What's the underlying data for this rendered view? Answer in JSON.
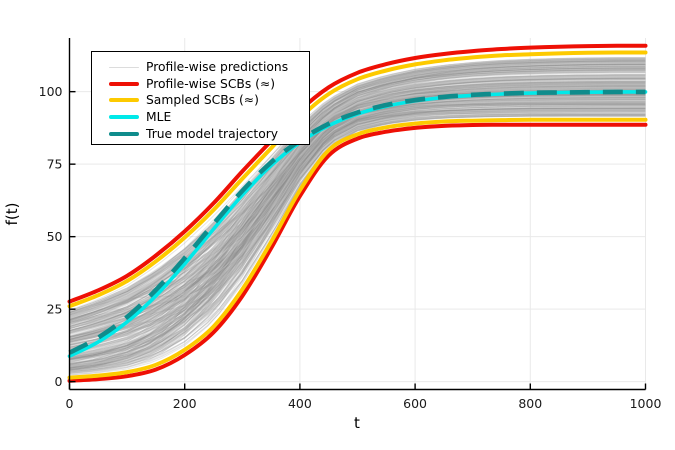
{
  "chart_data": {
    "type": "line",
    "title": "",
    "xlabel": "t",
    "ylabel": "f(t)",
    "xlim": [
      0,
      1000
    ],
    "ylim": [
      -2.7,
      118.5
    ],
    "xticks": [
      0,
      200,
      400,
      600,
      800,
      1000
    ],
    "yticks": [
      0,
      25,
      50,
      75,
      100
    ],
    "grid": true,
    "legend_position": "top-left",
    "x": [
      0,
      50,
      100,
      150,
      200,
      250,
      300,
      350,
      400,
      450,
      500,
      550,
      600,
      650,
      700,
      750,
      800,
      850,
      900,
      950,
      1000
    ],
    "series": [
      {
        "name": "Profile-wise predictions",
        "kind": "ensemble",
        "color": "#8d8d8d",
        "light_color": "#c4c4c4",
        "legend_color": "#dcdcdc",
        "legend_thickness": 1.6,
        "count": 320,
        "seed": 20240613,
        "w_start": [
          0.02,
          0.98
        ],
        "w_end": [
          0.04,
          0.96
        ],
        "t_mid": [
          150,
          420
        ],
        "t_scale": [
          40,
          120
        ]
      },
      {
        "name": "Profile-wise SCBs (≈)",
        "kind": "band",
        "color": "#ee1005",
        "legend_thickness": 4,
        "width": 4,
        "upper": [
          27.6,
          31.5,
          36.5,
          43.5,
          51.8,
          61.5,
          72.5,
          83.0,
          93.5,
          101.5,
          106.5,
          109.5,
          111.6,
          113.0,
          114.0,
          114.7,
          115.2,
          115.5,
          115.7,
          115.8,
          115.8
        ],
        "lower": [
          0.3,
          0.9,
          1.9,
          4.2,
          9.2,
          17.0,
          29.5,
          46.0,
          64.0,
          78.0,
          83.8,
          86.2,
          87.5,
          88.2,
          88.5,
          88.6,
          88.6,
          88.6,
          88.6,
          88.6,
          88.6
        ]
      },
      {
        "name": "Sampled SCBs (≈)",
        "kind": "band",
        "color": "#fdca00",
        "legend_thickness": 4,
        "width": 4,
        "upper": [
          26.0,
          29.8,
          34.7,
          41.5,
          49.7,
          59.2,
          70.0,
          80.5,
          91.0,
          99.2,
          104.3,
          107.3,
          109.4,
          110.8,
          111.8,
          112.5,
          112.9,
          113.2,
          113.4,
          113.5,
          113.5
        ],
        "lower": [
          1.4,
          2.1,
          3.3,
          5.8,
          11.0,
          19.0,
          31.8,
          48.2,
          66.0,
          79.8,
          85.3,
          87.7,
          89.0,
          89.7,
          90.0,
          90.2,
          90.3,
          90.3,
          90.3,
          90.3,
          90.3
        ]
      },
      {
        "name": "MLE",
        "kind": "line",
        "color": "#00e9e9",
        "legend_thickness": 4,
        "width": 3.6,
        "values": [
          8.8,
          13.7,
          20.6,
          29.6,
          40.6,
          52.6,
          64.3,
          74.5,
          82.5,
          88.3,
          92.3,
          95.0,
          96.8,
          98.0,
          98.7,
          99.2,
          99.5,
          99.7,
          99.8,
          99.9,
          99.9
        ]
      },
      {
        "name": "True model trajectory",
        "kind": "line",
        "color": "#0f8c8c",
        "legend_thickness": 4,
        "width": 4.6,
        "dash": "20 13",
        "values": [
          10.0,
          15.2,
          22.3,
          31.6,
          42.6,
          54.4,
          65.8,
          75.6,
          83.2,
          88.9,
          92.8,
          95.4,
          97.1,
          98.2,
          98.9,
          99.3,
          99.6,
          99.7,
          99.8,
          99.9,
          99.9
        ]
      }
    ],
    "grid_color": "#e9e9e9",
    "axis_color": "#000000",
    "tick_label_color": "#1a1a1a"
  }
}
